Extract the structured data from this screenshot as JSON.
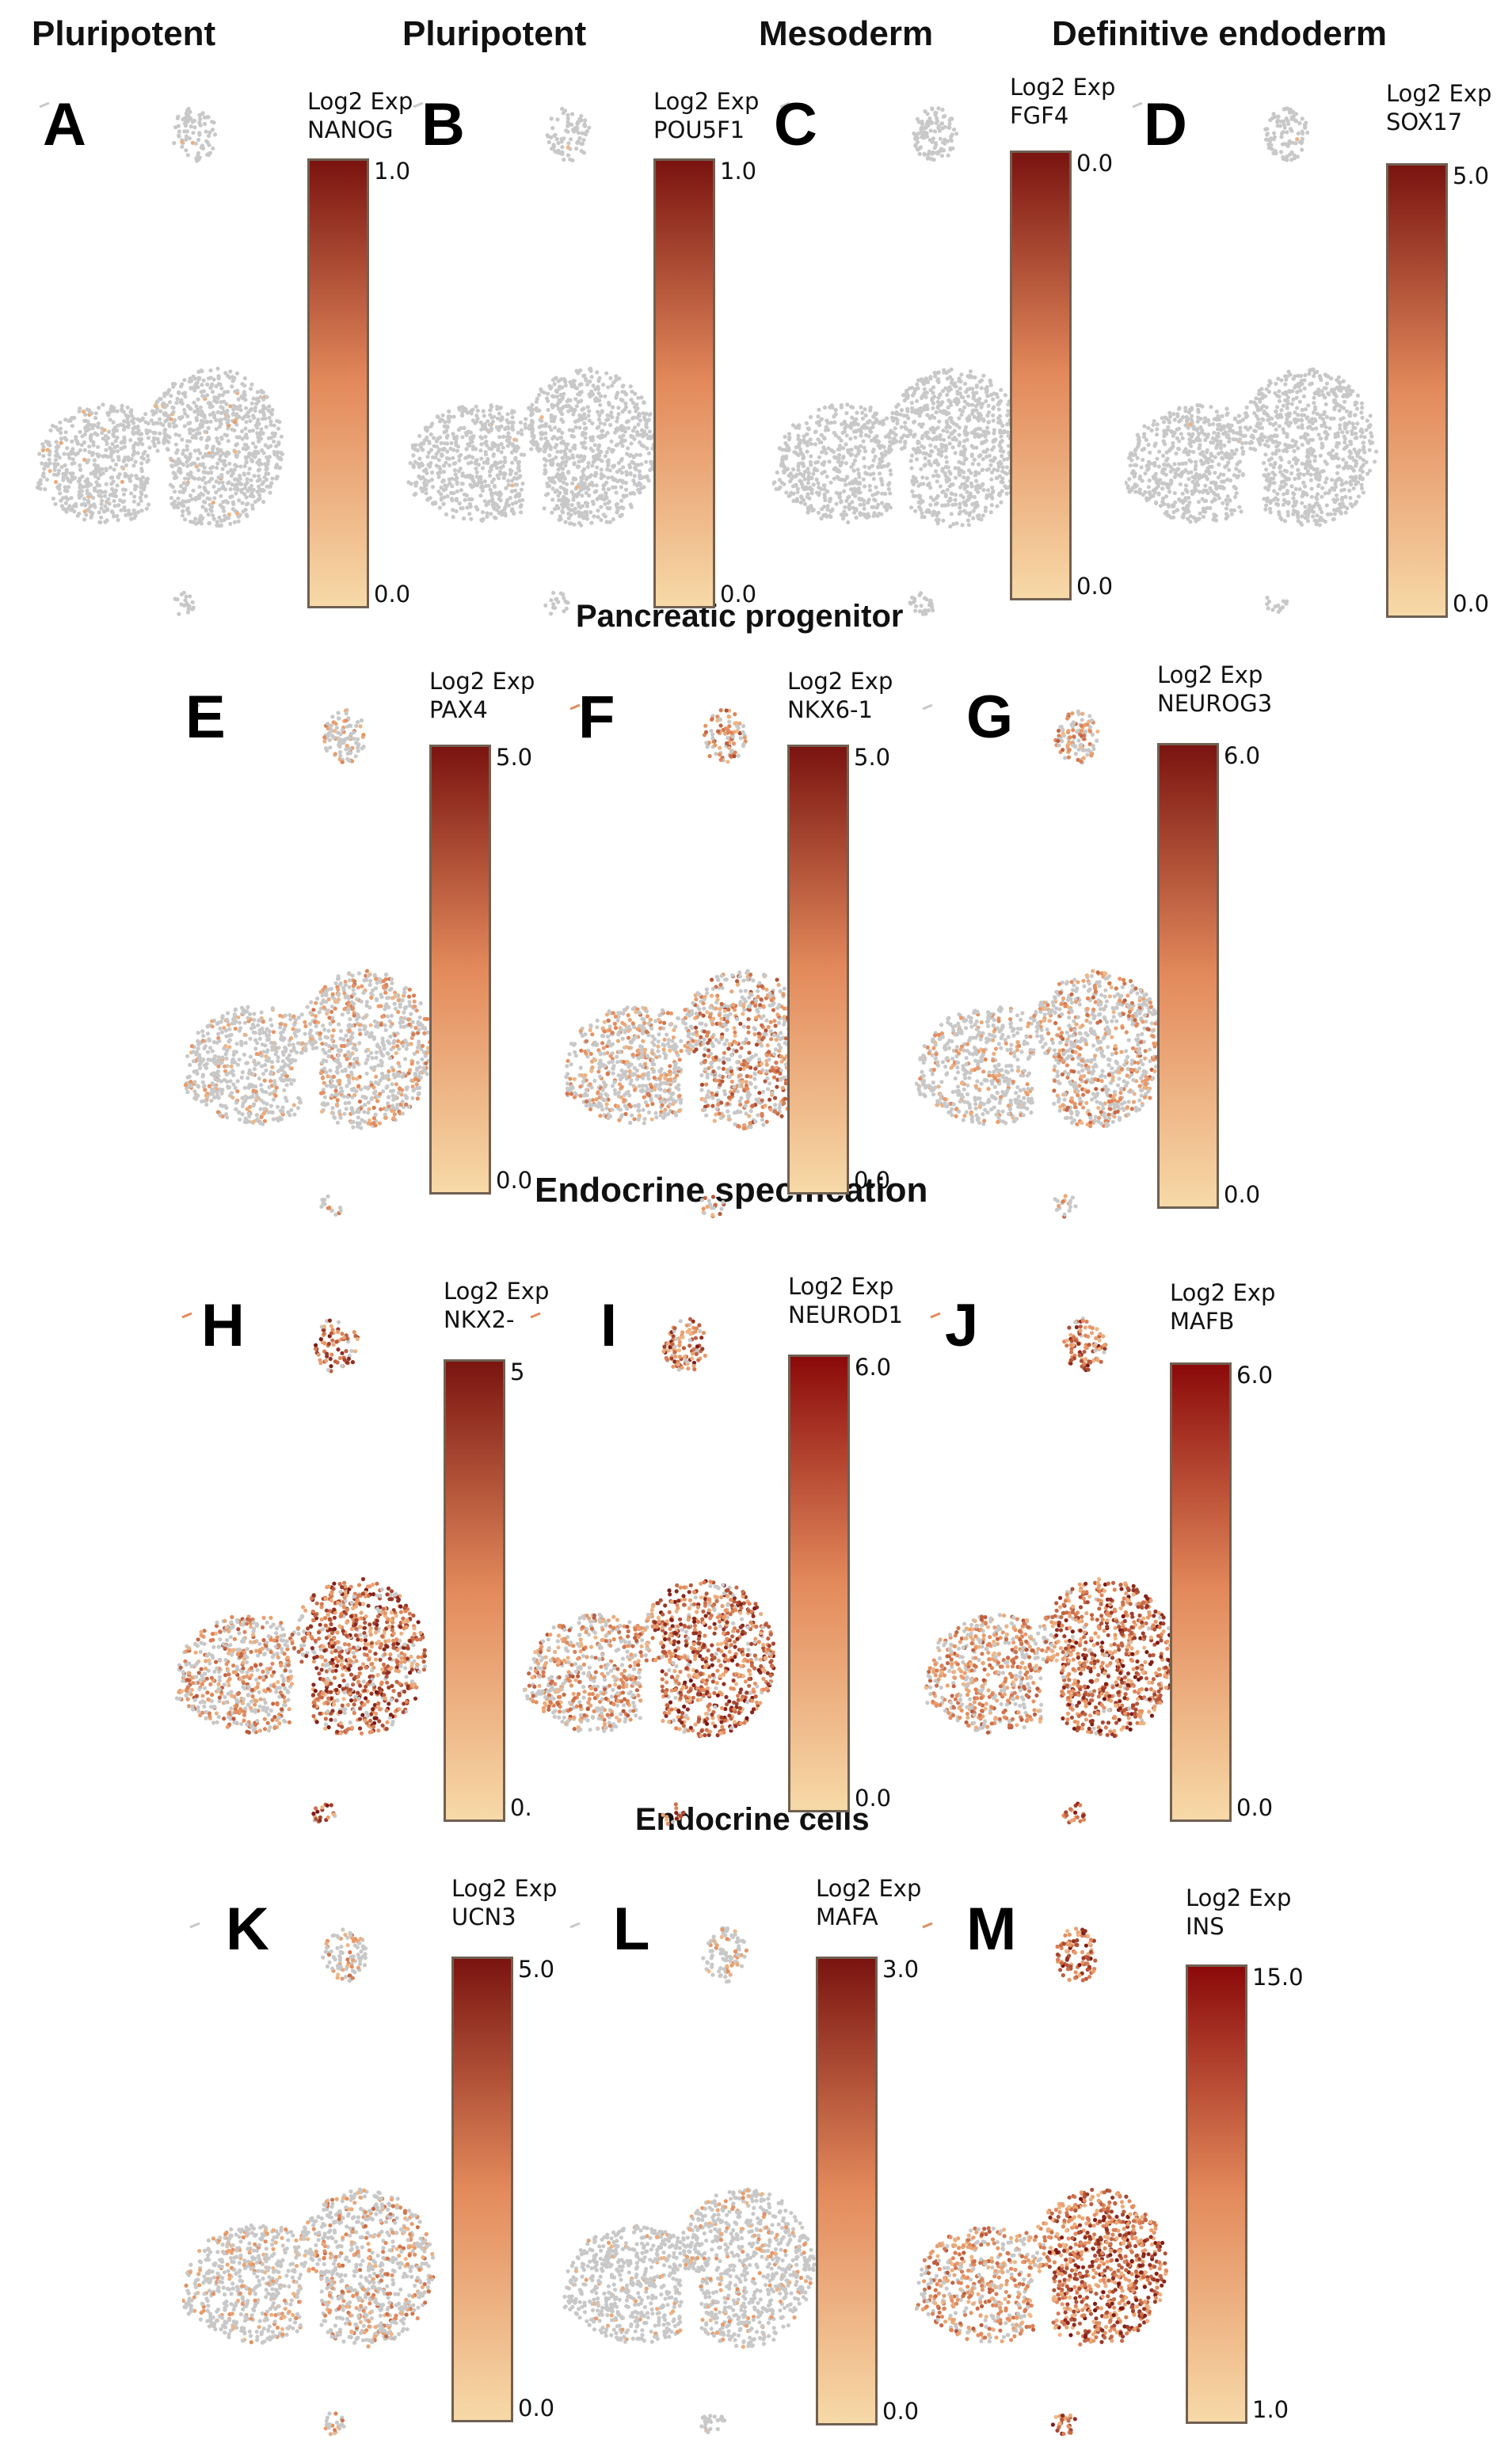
{
  "section_titles": {
    "pluripotent_a": "Pluripotent",
    "pluripotent_b": "Pluripotent",
    "mesoderm": "Mesoderm",
    "definitive_endoderm": "Definitive endoderm",
    "pancreatic_progenitor": "Pancreatic progenitor",
    "endocrine_specification": "Endocrine specification",
    "endocrine_cells": "Endocrine cells"
  },
  "colorbar_title": "Log2 Exp",
  "colors": {
    "cell_background": "#c8c8c8",
    "scale_low": "#f7d9a8",
    "scale_mid": "#e38a5c",
    "scale_high": "#7a1410",
    "scale_high_alt": "#8b0a0a"
  },
  "chart_data": [
    {
      "type": "scatter",
      "panel": "A",
      "group": "Pluripotent",
      "gene": "NANOG",
      "scale_min": "0.0",
      "scale_max": "1.0",
      "expression_level": 0.03
    },
    {
      "type": "scatter",
      "panel": "B",
      "group": "Pluripotent",
      "gene": "POU5F1",
      "scale_min": "0.0",
      "scale_max": "1.0",
      "expression_level": 0.005
    },
    {
      "type": "scatter",
      "panel": "C",
      "group": "Mesoderm",
      "gene": "FGF4",
      "scale_min": "0.0",
      "scale_max": "0.0",
      "expression_level": 0.0
    },
    {
      "type": "scatter",
      "panel": "D",
      "group": "Definitive endoderm",
      "gene": "SOX17",
      "scale_min": "0.0",
      "scale_max": "5.0",
      "expression_level": 0.003
    },
    {
      "type": "scatter",
      "panel": "E",
      "group": "Pancreatic progenitor",
      "gene": "PAX4",
      "scale_min": "0.0",
      "scale_max": "5.0",
      "expression_level": 0.3
    },
    {
      "type": "scatter",
      "panel": "F",
      "group": "Pancreatic progenitor",
      "gene": "NKX6-1",
      "scale_min": "0.0",
      "scale_max": "5.0",
      "expression_level": 0.55
    },
    {
      "type": "scatter",
      "panel": "G",
      "group": "Pancreatic progenitor",
      "gene": "NEUROG3",
      "scale_min": "0.0",
      "scale_max": "6.0",
      "expression_level": 0.4
    },
    {
      "type": "scatter",
      "panel": "H",
      "group": "Endocrine specification",
      "gene": "NKX2-",
      "scale_min": "0.",
      "scale_max": "5",
      "expression_level": 0.85
    },
    {
      "type": "scatter",
      "panel": "I",
      "group": "Endocrine specification",
      "gene": "NEUROD1",
      "scale_min": "0.0",
      "scale_max": "6.0",
      "expression_level": 0.9
    },
    {
      "type": "scatter",
      "panel": "J",
      "group": "Endocrine specification",
      "gene": "MAFB",
      "scale_min": "0.0",
      "scale_max": "6.0",
      "expression_level": 0.95
    },
    {
      "type": "scatter",
      "panel": "K",
      "group": "Endocrine cells",
      "gene": "UCN3",
      "scale_min": "0.0",
      "scale_max": "5.0",
      "expression_level": 0.35
    },
    {
      "type": "scatter",
      "panel": "L",
      "group": "Endocrine cells",
      "gene": "MAFA",
      "scale_min": "0.0",
      "scale_max": "3.0",
      "expression_level": 0.15
    },
    {
      "type": "scatter",
      "panel": "M",
      "group": "Endocrine cells",
      "gene": "INS",
      "scale_min": "1.0",
      "scale_max": "15.0",
      "expression_level": 1.0
    }
  ]
}
